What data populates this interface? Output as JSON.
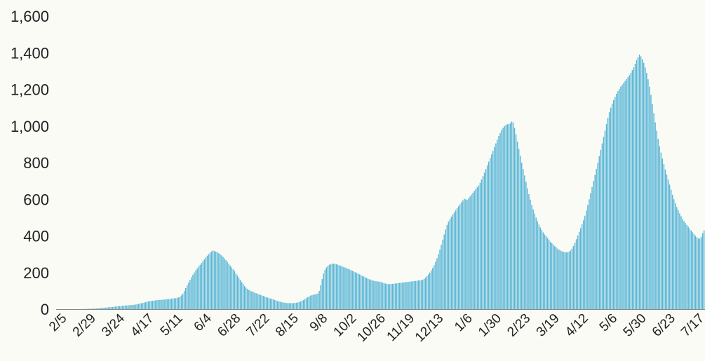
{
  "chart_data": {
    "type": "bar",
    "title": "",
    "xlabel": "",
    "ylabel": "",
    "ylim": [
      0,
      1600
    ],
    "y_ticks": [
      "0",
      "200",
      "400",
      "600",
      "800",
      "1,000",
      "1,200",
      "1,400",
      "1,600"
    ],
    "x_ticks": [
      "2/5",
      "2/29",
      "3/24",
      "4/17",
      "5/11",
      "6/4",
      "6/28",
      "7/22",
      "8/15",
      "9/8",
      "10/2",
      "10/26",
      "11/19",
      "12/13",
      "1/6",
      "1/30",
      "2/23",
      "3/19",
      "4/12",
      "5/6",
      "5/30",
      "6/23",
      "7/17"
    ],
    "bar_color": "#5bb7d6",
    "grid": false,
    "legend": "none",
    "series": [
      {
        "values": [
          0,
          0,
          0,
          0,
          0,
          0,
          0,
          0,
          0,
          0,
          0,
          0,
          0,
          0,
          1,
          1,
          1,
          1,
          2,
          2,
          2,
          3,
          3,
          3,
          4,
          4,
          5,
          6,
          6,
          7,
          8,
          9,
          10,
          11,
          11,
          12,
          13,
          14,
          15,
          16,
          17,
          17,
          18,
          19,
          20,
          20,
          21,
          22,
          22,
          23,
          24,
          25,
          26,
          28,
          30,
          32,
          34,
          36,
          38,
          40,
          42,
          44,
          45,
          46,
          47,
          48,
          49,
          50,
          50,
          51,
          52,
          52,
          53,
          54,
          55,
          56,
          57,
          58,
          59,
          60,
          62,
          64,
          68,
          75,
          85,
          100,
          115,
          130,
          145,
          160,
          175,
          188,
          200,
          212,
          222,
          232,
          242,
          252,
          262,
          272,
          282,
          292,
          300,
          308,
          315,
          320,
          318,
          314,
          310,
          305,
          300,
          293,
          285,
          277,
          268,
          258,
          248,
          238,
          228,
          218,
          208,
          196,
          184,
          172,
          160,
          148,
          137,
          126,
          117,
          110,
          105,
          100,
          97,
          94,
          90,
          87,
          84,
          81,
          78,
          75,
          72,
          69,
          66,
          63,
          60,
          58,
          56,
          53,
          50,
          47,
          44,
          42,
          40,
          38,
          36,
          35,
          34,
          33,
          33,
          33,
          33,
          33,
          34,
          35,
          37,
          39,
          42,
          46,
          50,
          55,
          60,
          65,
          70,
          74,
          77,
          79,
          80,
          82,
          85,
          100,
          130,
          165,
          195,
          215,
          228,
          236,
          242,
          246,
          248,
          248,
          247,
          245,
          242,
          239,
          236,
          233,
          230,
          227,
          224,
          220,
          217,
          213,
          210,
          206,
          202,
          198,
          194,
          190,
          186,
          182,
          178,
          174,
          170,
          166,
          163,
          160,
          157,
          155,
          153,
          152,
          151,
          150,
          148,
          145,
          142,
          140,
          138,
          137,
          137,
          137,
          138,
          139,
          140,
          141,
          142,
          143,
          144,
          145,
          146,
          147,
          148,
          149,
          150,
          151,
          152,
          153,
          154,
          155,
          156,
          157,
          158,
          160,
          165,
          172,
          180,
          190,
          200,
          212,
          225,
          240,
          258,
          278,
          300,
          325,
          352,
          380,
          408,
          435,
          460,
          478,
          492,
          505,
          517,
          528,
          540,
          551,
          562,
          573,
          584,
          594,
          603,
          600,
          596,
          605,
          615,
          625,
          635,
          645,
          655,
          665,
          675,
          690,
          708,
          726,
          745,
          765,
          785,
          805,
          825,
          845,
          865,
          885,
          905,
          925,
          945,
          962,
          978,
          990,
          1000,
          1005,
          1010,
          1010,
          1015,
          1025,
          1020,
          990,
          955,
          915,
          875,
          838,
          800,
          765,
          730,
          695,
          660,
          628,
          598,
          570,
          545,
          522,
          500,
          480,
          462,
          446,
          432,
          419,
          408,
          398,
          388,
          378,
          368,
          360,
          352,
          344,
          337,
          330,
          324,
          320,
          316,
          313,
          311,
          310,
          311,
          314,
          320,
          330,
          345,
          362,
          382,
          402,
          422,
          442,
          463,
          485,
          510,
          538,
          568,
          600,
          633,
          667,
          700,
          733,
          766,
          800,
          835,
          870,
          905,
          940,
          975,
          1010,
          1045,
          1075,
          1100,
          1122,
          1142,
          1160,
          1176,
          1190,
          1203,
          1215,
          1226,
          1236,
          1246,
          1256,
          1266,
          1277,
          1290,
          1305,
          1320,
          1340,
          1360,
          1375,
          1390,
          1380,
          1365,
          1345,
          1320,
          1290,
          1255,
          1215,
          1170,
          1120,
          1070,
          1020,
          975,
          930,
          890,
          855,
          822,
          792,
          763,
          735,
          708,
          680,
          652,
          625,
          600,
          578,
          558,
          540,
          523,
          507,
          493,
          481,
          470,
          460,
          450,
          440,
          430,
          420,
          410,
          400,
          392,
          386,
          385,
          395,
          415,
          430
        ]
      }
    ]
  }
}
